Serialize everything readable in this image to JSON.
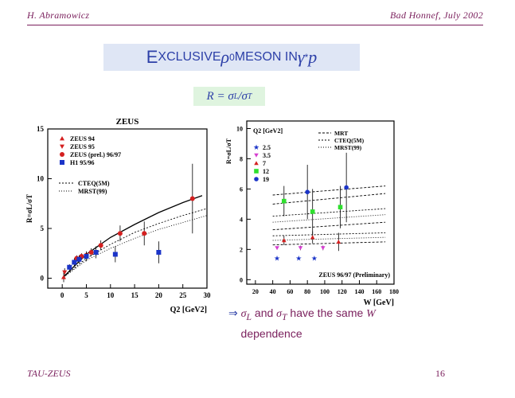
{
  "header": {
    "author": "H. Abramowicz",
    "venue": "Bad Honnef, July 2002"
  },
  "slide": {
    "title": "Exclusive ρ0 meson in γ*p",
    "title_html": "E<span style=\"font-size:16px\">XCLUSIVE</span> <i style=\"font-family:'Liberation Serif',serif\">ρ</i><sup style=\"font-size:12px\">0</sup> <span style=\"font-size:16px\">MESON IN</span> <i style=\"font-family:'Liberation Serif',serif\">γ</i><sup style=\"font-size:12px\">*</sup><i style=\"font-family:'Liberation Serif',serif\">p</i>",
    "formula": "R = σL/σT",
    "formula_html": "R = σ<sub style=\"font-size:10px\">L</sub>/σ<sub style=\"font-size:10px\">T</sub>",
    "caption_html": "<span class=\"arrow\">⇒</span> <i>σ<sub>L</sub></i> and <i>σ<sub>T</sub></i> have the same <i>W</i><br>&nbsp;&nbsp;&nbsp;&nbsp;dependence",
    "caption": "⇒ σL and σT have the same W dependence"
  },
  "footer": {
    "left": "TAU-ZEUS",
    "page": "16"
  },
  "colors": {
    "accent": "#7a1f5c",
    "title": "#2d40a8",
    "title_bg": "#dfe6f5",
    "formula_bg": "#dff4df"
  },
  "chart_data": [
    {
      "type": "scatter",
      "title": "ZEUS",
      "xlabel": "Q2 [GeV2]",
      "ylabel": "R=σL/σT",
      "xlim": [
        -3,
        30
      ],
      "ylim": [
        -1,
        15
      ],
      "xticks": [
        0,
        5,
        10,
        15,
        20,
        25,
        30
      ],
      "yticks": [
        0,
        5,
        10,
        15
      ],
      "legend": [
        "ZEUS 94",
        "ZEUS 95",
        "ZEUS (prel.) 96/97",
        "H1 95/96"
      ],
      "curve_legend": [
        "CTEQ(5M)",
        "MRST(99)"
      ],
      "series": [
        {
          "name": "ZEUS 94",
          "color": "#d42020",
          "marker": "triangle-up",
          "points": [
            [
              0.3,
              0.1
            ]
          ],
          "errors": [
            0.5
          ]
        },
        {
          "name": "ZEUS 95",
          "color": "#d42020",
          "marker": "triangle-down",
          "points": [
            [
              0.5,
              0.6
            ]
          ],
          "errors": [
            0.4
          ]
        },
        {
          "name": "ZEUS (prel.) 96/97",
          "color": "#d42020",
          "marker": "circle",
          "points": [
            [
              3,
              2.0
            ],
            [
              4,
              2.2
            ],
            [
              5,
              2.3
            ],
            [
              6,
              2.6
            ],
            [
              8,
              3.3
            ],
            [
              12,
              4.5
            ],
            [
              17,
              4.5
            ],
            [
              27,
              8.0
            ]
          ],
          "errors": [
            0.3,
            0.3,
            0.3,
            0.4,
            0.5,
            0.8,
            1.2,
            3.5
          ]
        },
        {
          "name": "H1 95/96",
          "color": "#1b34c8",
          "marker": "square",
          "points": [
            [
              1.5,
              1.1
            ],
            [
              2.5,
              1.6
            ],
            [
              3.5,
              1.9
            ],
            [
              5,
              2.2
            ],
            [
              7,
              2.6
            ],
            [
              11,
              2.4
            ],
            [
              20,
              2.6
            ]
          ],
          "errors": [
            0.3,
            0.4,
            0.4,
            0.5,
            0.6,
            0.8,
            1.1
          ]
        }
      ],
      "curves": [
        {
          "name": "CTEQ(5M)",
          "dash": "2,2",
          "points": [
            [
              0,
              0
            ],
            [
              5,
              2.0
            ],
            [
              10,
              3.4
            ],
            [
              15,
              4.6
            ],
            [
              20,
              5.5
            ],
            [
              25,
              6.3
            ],
            [
              30,
              7.0
            ]
          ]
        },
        {
          "name": "MRST(99)",
          "dash": "1,2",
          "points": [
            [
              0,
              0
            ],
            [
              5,
              1.8
            ],
            [
              10,
              3.0
            ],
            [
              15,
              4.0
            ],
            [
              20,
              4.9
            ],
            [
              25,
              5.6
            ],
            [
              30,
              6.3
            ]
          ]
        },
        {
          "name": "fit",
          "dash": "",
          "points": [
            [
              0,
              0
            ],
            [
              5,
              2.4
            ],
            [
              10,
              4.1
            ],
            [
              15,
              5.4
            ],
            [
              20,
              6.6
            ],
            [
              25,
              7.6
            ],
            [
              29,
              8.3
            ]
          ]
        }
      ]
    },
    {
      "type": "scatter",
      "title": "",
      "xlabel": "W [GeV]",
      "ylabel": "R=σL/σT",
      "xlim": [
        10,
        180
      ],
      "ylim": [
        -0.3,
        10.5
      ],
      "xticks": [
        20,
        40,
        60,
        80,
        100,
        120,
        140,
        160,
        180
      ],
      "yticks": [
        0,
        2,
        4,
        6,
        8,
        10
      ],
      "legend_title": "Q2 [GeV2]",
      "legend": [
        "2.5",
        "3.5",
        "7",
        "12",
        "19"
      ],
      "curve_legend": [
        "MRT",
        "CTEQ(5M)",
        "MRST(99)"
      ],
      "annotation": "ZEUS 96/97 (Preliminary)",
      "series": [
        {
          "name": "2.5",
          "color": "#1b34c8",
          "marker": "star",
          "points": [
            [
              45,
              1.4
            ],
            [
              70,
              1.4
            ],
            [
              88,
              1.4
            ]
          ],
          "errors": [
            0,
            0,
            0
          ]
        },
        {
          "name": "3.5",
          "color": "#d63fd0",
          "marker": "triangle-down",
          "points": [
            [
              45,
              2.1
            ],
            [
              72,
              2.1
            ],
            [
              98,
              2.1
            ]
          ],
          "errors": [
            0.1,
            0.15,
            0.15
          ]
        },
        {
          "name": "7",
          "color": "#d42020",
          "marker": "triangle-up",
          "points": [
            [
              53,
              2.6
            ],
            [
              86,
              2.8
            ],
            [
              116,
              2.5
            ]
          ],
          "errors": [
            0.3,
            0.4,
            0.6
          ]
        },
        {
          "name": "12",
          "color": "#2ee02e",
          "marker": "square",
          "points": [
            [
              53,
              5.2
            ],
            [
              86,
              4.5
            ],
            [
              118,
              4.8
            ]
          ],
          "errors": [
            1.0,
            1.5,
            1.4
          ]
        },
        {
          "name": "19",
          "color": "#1b34c8",
          "marker": "circle",
          "points": [
            [
              80,
              5.8
            ],
            [
              125,
              6.1
            ]
          ],
          "errors": [
            1.8,
            2.3
          ]
        }
      ],
      "curves": [
        {
          "name": "MRT",
          "dash": "3,2",
          "points": [
            [
              40,
              5.6
            ],
            [
              170,
              6.2
            ]
          ]
        },
        {
          "name": "MRT",
          "dash": "3,2",
          "points": [
            [
              40,
              5.0
            ],
            [
              170,
              5.7
            ]
          ]
        },
        {
          "name": "CTEQ(5M)",
          "dash": "2,2",
          "points": [
            [
              40,
              4.2
            ],
            [
              170,
              4.7
            ]
          ]
        },
        {
          "name": "MRST(99)",
          "dash": "1,2",
          "points": [
            [
              40,
              3.8
            ],
            [
              170,
              4.3
            ]
          ]
        },
        {
          "name": "MRT",
          "dash": "3,2",
          "points": [
            [
              40,
              3.3
            ],
            [
              170,
              3.8
            ]
          ]
        },
        {
          "name": "CTEQ(5M)",
          "dash": "2,2",
          "points": [
            [
              40,
              2.9
            ],
            [
              170,
              3.1
            ]
          ]
        },
        {
          "name": "MRST(99)",
          "dash": "1,2",
          "points": [
            [
              40,
              2.6
            ],
            [
              170,
              2.8
            ]
          ]
        },
        {
          "name": "MRT",
          "dash": "3,2",
          "points": [
            [
              40,
              2.3
            ],
            [
              170,
              2.5
            ]
          ]
        }
      ]
    }
  ]
}
